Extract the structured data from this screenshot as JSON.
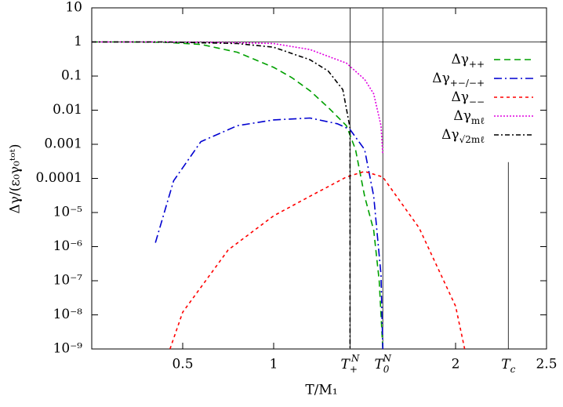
{
  "chart_data": {
    "type": "line",
    "xlabel": "T/M₁",
    "ylabel": "Δγ/(ε₀γ₀ᵗᵒᵗ)",
    "xlim": [
      0,
      2.5
    ],
    "ylim": [
      1e-09,
      10
    ],
    "log_y": true,
    "xticks": [
      0.5,
      1,
      2,
      2.5
    ],
    "yticks": [
      10,
      1,
      0.1,
      0.01,
      0.001,
      0.0001,
      {
        "value": 1e-05,
        "label": "10⁻⁵"
      },
      {
        "value": 1e-06,
        "label": "10⁻⁶"
      },
      {
        "value": 1e-07,
        "label": "10⁻⁷"
      },
      {
        "value": 1e-08,
        "label": "10⁻⁸"
      },
      {
        "value": 1e-09,
        "label": "10⁻⁹"
      }
    ],
    "hlines": [
      1
    ],
    "markers": [
      {
        "x": 1.42,
        "label": {
          "base": "T",
          "sub": "+",
          "sup": "N"
        }
      },
      {
        "x": 1.6,
        "label": {
          "base": "T",
          "sub": "0",
          "sup": "N"
        }
      },
      {
        "x": 2.29,
        "from": 0.0003,
        "label": {
          "base": "T",
          "sub": "c"
        }
      }
    ],
    "series": [
      {
        "name": "Δγ",
        "subscript": "++",
        "color": "#00a000",
        "dash": "8,5",
        "x": [
          0,
          0.2,
          0.4,
          0.6,
          0.8,
          1.0,
          1.1,
          1.2,
          1.3,
          1.4,
          1.45,
          1.5,
          1.55,
          1.58,
          1.6
        ],
        "values": [
          1,
          1,
          0.98,
          0.85,
          0.5,
          0.18,
          0.09,
          0.037,
          0.012,
          0.0035,
          0.0007,
          3e-05,
          3e-06,
          1e-07,
          1e-09
        ]
      },
      {
        "name": "Δγ",
        "subscript": "+−/−+",
        "color": "#0000d0",
        "dash": "10,4,2,4",
        "x": [
          0.35,
          0.45,
          0.6,
          0.8,
          1.0,
          1.2,
          1.35,
          1.42,
          1.5,
          1.55,
          1.59,
          1.6
        ],
        "values": [
          1.3e-06,
          8.5e-05,
          0.0012,
          0.0035,
          0.0052,
          0.0059,
          0.004,
          0.0027,
          0.0007,
          3e-05,
          1.5e-07,
          1e-09
        ]
      },
      {
        "name": "Δγ",
        "subscript": "−−",
        "color": "#ff0000",
        "dash": "4,4",
        "x": [
          0.43,
          0.5,
          0.75,
          1.0,
          1.2,
          1.4,
          1.5,
          1.6,
          1.8,
          2.0,
          2.05
        ],
        "values": [
          1e-09,
          1.2e-08,
          8e-07,
          8e-06,
          3e-05,
          0.00011,
          0.00016,
          0.00011,
          3.5e-06,
          1.8e-08,
          1e-09
        ]
      },
      {
        "name": "Δγ",
        "subscript": "mℓ",
        "color": "#e000e0",
        "dash": "2,2",
        "x": [
          0,
          0.4,
          0.8,
          1.0,
          1.2,
          1.4,
          1.5,
          1.55,
          1.59,
          1.6
        ],
        "values": [
          1,
          1,
          0.95,
          0.9,
          0.6,
          0.24,
          0.08,
          0.03,
          0.0035,
          0.0005
        ]
      },
      {
        "name": "Δγ",
        "subscript": "√2mℓ",
        "color": "#000000",
        "dash": "6,3,2,3",
        "x": [
          0,
          0.4,
          0.8,
          1.0,
          1.2,
          1.3,
          1.38,
          1.42,
          1.42
        ],
        "values": [
          1,
          1,
          0.9,
          0.7,
          0.3,
          0.14,
          0.04,
          0.003,
          1e-09
        ]
      }
    ]
  }
}
